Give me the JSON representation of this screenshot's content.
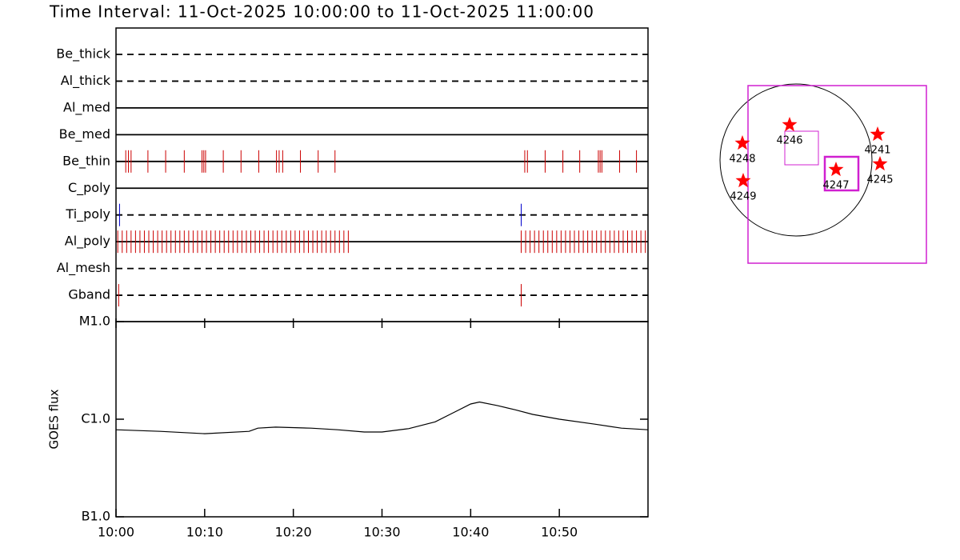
{
  "chart_data": [
    {
      "type": "timeline",
      "title": "Time Interval: 11-Oct-2025 10:00:00 to 11-Oct-2025 11:00:00",
      "xlim": [
        0,
        60
      ],
      "rows": [
        {
          "name": "Be_thick",
          "style": "dashed",
          "color": "#cc0000",
          "events": []
        },
        {
          "name": "Al_thick",
          "style": "dashed",
          "color": "#cc0000",
          "events": []
        },
        {
          "name": "Al_med",
          "style": "solid",
          "color": "#cc0000",
          "events": []
        },
        {
          "name": "Be_med",
          "style": "solid",
          "color": "#cc0000",
          "events": []
        },
        {
          "name": "Be_thin",
          "style": "solid",
          "color": "#cc0000",
          "events": [
            1.1,
            1.4,
            1.7,
            3.6,
            5.6,
            7.7,
            9.7,
            9.9,
            10.1,
            12.1,
            14.1,
            16.1,
            18.1,
            18.4,
            18.8,
            20.8,
            22.8,
            24.7,
            46.1,
            46.4,
            48.4,
            50.4,
            52.3,
            54.4,
            54.6,
            54.8,
            56.8,
            58.7
          ]
        },
        {
          "name": "C_poly",
          "style": "solid",
          "color": "#cc0000",
          "events": []
        },
        {
          "name": "Ti_poly",
          "style": "dashed",
          "color": "#0000cc",
          "events": [
            0.4,
            45.7
          ]
        },
        {
          "name": "Al_poly",
          "style": "solid",
          "color": "#cc0000",
          "events": [
            0.2,
            0.7,
            1.2,
            1.7,
            2.2,
            2.7,
            3.2,
            3.7,
            4.2,
            4.7,
            5.2,
            5.7,
            6.2,
            6.7,
            7.2,
            7.7,
            8.2,
            8.7,
            9.2,
            9.7,
            10.2,
            10.7,
            11.2,
            11.7,
            12.2,
            12.7,
            13.2,
            13.7,
            14.2,
            14.7,
            15.2,
            15.7,
            16.2,
            16.7,
            17.2,
            17.7,
            18.2,
            18.7,
            19.2,
            19.7,
            20.2,
            20.7,
            21.2,
            21.7,
            22.2,
            22.7,
            23.2,
            23.7,
            24.2,
            24.7,
            25.2,
            25.7,
            26.2,
            45.7,
            46.2,
            46.7,
            47.2,
            47.7,
            48.2,
            48.7,
            49.2,
            49.7,
            50.2,
            50.7,
            51.2,
            51.7,
            52.2,
            52.7,
            53.2,
            53.7,
            54.2,
            54.7,
            55.2,
            55.7,
            56.2,
            56.7,
            57.2,
            57.7,
            58.2,
            58.7,
            59.2,
            59.7
          ]
        },
        {
          "name": "Al_mesh",
          "style": "dashed",
          "color": "#cc0000",
          "events": []
        },
        {
          "name": "Gband",
          "style": "dashed",
          "color": "#cc0000",
          "events": [
            0.3,
            45.7
          ]
        }
      ]
    },
    {
      "type": "line",
      "y_label": "GOES flux",
      "log_scale": true,
      "color": "#000000",
      "x": [
        0,
        5,
        10,
        15,
        16,
        18,
        22,
        25,
        28,
        30,
        33,
        36,
        38,
        40,
        41,
        43,
        45,
        47,
        50,
        54,
        57,
        60
      ],
      "values": [
        7.8e-07,
        7.5e-07,
        7.1e-07,
        7.5e-07,
        8.1e-07,
        8.3e-07,
        8.1e-07,
        7.8e-07,
        7.4e-07,
        7.4e-07,
        8e-07,
        9.4e-07,
        1.16e-06,
        1.43e-06,
        1.5e-06,
        1.38e-06,
        1.25e-06,
        1.12e-06,
        1e-06,
        8.9e-07,
        8.1e-07,
        7.8e-07
      ],
      "xlim": [
        0,
        60
      ],
      "xticks": [
        {
          "value": 0,
          "label": "10:00"
        },
        {
          "value": 10,
          "label": "10:10"
        },
        {
          "value": 20,
          "label": "10:20"
        },
        {
          "value": 30,
          "label": "10:30"
        },
        {
          "value": 40,
          "label": "10:40"
        },
        {
          "value": 50,
          "label": "10:50"
        }
      ],
      "ylim": [
        1e-07,
        1e-05
      ],
      "yticks": [
        {
          "value": 1e-07,
          "label": "B1.0"
        },
        {
          "value": 1e-06,
          "label": "C1.0"
        },
        {
          "value": 1e-05,
          "label": "M1.0"
        }
      ]
    }
  ],
  "map": {
    "regions": [
      {
        "label": "4248"
      },
      {
        "label": "4246"
      },
      {
        "label": "4241"
      },
      {
        "label": "4245"
      },
      {
        "label": "4247"
      },
      {
        "label": "4249"
      }
    ]
  }
}
